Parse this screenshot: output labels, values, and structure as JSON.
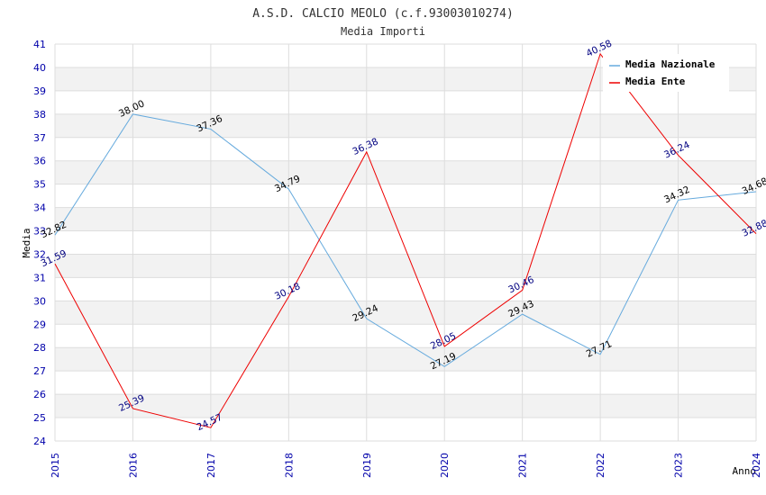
{
  "chart_data": {
    "type": "line",
    "title": "A.S.D. CALCIO MEOLO (c.f.93003010274)",
    "subtitle": "Media Importi",
    "xlabel": "Anno",
    "ylabel": "Media",
    "ylim": [
      24,
      41
    ],
    "yticks": [
      "24",
      "25",
      "26",
      "27",
      "28",
      "29",
      "30",
      "31",
      "32",
      "33",
      "34",
      "35",
      "36",
      "37",
      "38",
      "39",
      "40",
      "41"
    ],
    "categories": [
      "2015",
      "2016",
      "2017",
      "2018",
      "2019",
      "2020",
      "2021",
      "2022",
      "2023",
      "2024"
    ],
    "legend_position": "top-right",
    "series": [
      {
        "name": "Media Nazionale",
        "color": "#66aadd",
        "label_color": "#000000",
        "values": [
          32.82,
          38.0,
          37.36,
          34.79,
          29.24,
          27.19,
          29.43,
          27.71,
          34.32,
          34.68
        ],
        "labels": [
          "32.82",
          "38.00",
          "37.36",
          "34.79",
          "29.24",
          "27.19",
          "29.43",
          "27.71",
          "34.32",
          "34.68"
        ]
      },
      {
        "name": "Media Ente",
        "color": "#ee0000",
        "label_color": "#000080",
        "values": [
          31.59,
          25.39,
          24.57,
          30.18,
          36.38,
          28.05,
          30.46,
          40.58,
          36.24,
          32.88
        ],
        "labels": [
          "31.59",
          "25.39",
          "24.57",
          "30.18",
          "36.38",
          "28.05",
          "30.46",
          "40.58",
          "36.24",
          "32.88"
        ]
      }
    ],
    "colors": {
      "band": "#f2f2f2",
      "grid": "#dddddd",
      "tick_text": "#0000aa"
    }
  }
}
